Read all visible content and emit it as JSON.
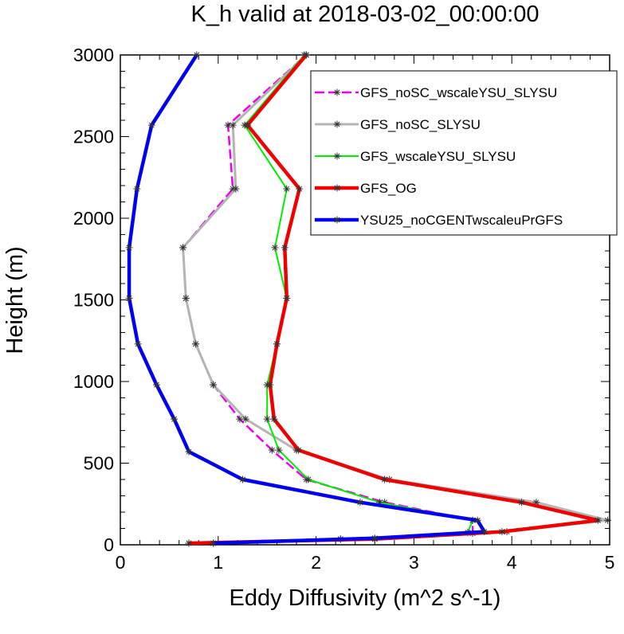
{
  "chart_data": {
    "type": "line",
    "title": "K_h valid at 2018-03-02_00:00:00",
    "xlabel": "Eddy Diffusivity (m^2 s^-1)",
    "ylabel": "Height (m)",
    "xlim": [
      0,
      5
    ],
    "ylim": [
      0,
      3000
    ],
    "x_ticks": [
      0,
      1,
      2,
      3,
      4,
      5
    ],
    "y_ticks": [
      0,
      500,
      1000,
      1500,
      2000,
      2500,
      3000
    ],
    "grid": false,
    "legend_position": "top-right",
    "series": [
      {
        "name": "GFS_noSC_wscaleYSU_SLYSU",
        "color": "#ee00ee",
        "dashed": true,
        "width": 2.5,
        "points": [
          [
            0.95,
            10
          ],
          [
            2.25,
            35
          ],
          [
            3.6,
            70
          ],
          [
            3.6,
            150
          ],
          [
            2.7,
            260
          ],
          [
            1.9,
            400
          ],
          [
            1.55,
            580
          ],
          [
            1.22,
            770
          ],
          [
            0.95,
            980
          ],
          [
            0.77,
            1230
          ],
          [
            0.67,
            1510
          ],
          [
            0.64,
            1820
          ],
          [
            1.15,
            2180
          ],
          [
            1.1,
            2570
          ],
          [
            1.9,
            3000
          ]
        ]
      },
      {
        "name": "GFS_noSC_SLYSU",
        "color": "#b4b4b4",
        "dashed": false,
        "width": 3,
        "points": [
          [
            0.7,
            10
          ],
          [
            2.6,
            35
          ],
          [
            3.95,
            80
          ],
          [
            4.98,
            150
          ],
          [
            4.25,
            260
          ],
          [
            2.75,
            400
          ],
          [
            1.8,
            580
          ],
          [
            1.28,
            770
          ],
          [
            0.95,
            980
          ],
          [
            0.77,
            1230
          ],
          [
            0.67,
            1510
          ],
          [
            0.64,
            1820
          ],
          [
            1.18,
            2180
          ],
          [
            1.15,
            2570
          ],
          [
            1.9,
            3000
          ]
        ]
      },
      {
        "name": "GFS_wscaleYSU_SLYSU",
        "color": "#00ee00",
        "dashed": false,
        "width": 2,
        "points": [
          [
            0.95,
            10
          ],
          [
            2.25,
            35
          ],
          [
            3.55,
            75
          ],
          [
            3.6,
            150
          ],
          [
            2.65,
            260
          ],
          [
            1.92,
            400
          ],
          [
            1.62,
            580
          ],
          [
            1.5,
            770
          ],
          [
            1.5,
            980
          ],
          [
            1.6,
            1230
          ],
          [
            1.7,
            1510
          ],
          [
            1.58,
            1820
          ],
          [
            1.7,
            2180
          ],
          [
            1.27,
            2570
          ],
          [
            1.88,
            3000
          ]
        ]
      },
      {
        "name": "GFS_OG",
        "color": "#ee0000",
        "dashed": false,
        "width": 4.5,
        "points": [
          [
            0.7,
            10
          ],
          [
            2.6,
            35
          ],
          [
            3.9,
            80
          ],
          [
            4.88,
            150
          ],
          [
            4.1,
            260
          ],
          [
            2.7,
            400
          ],
          [
            1.82,
            580
          ],
          [
            1.57,
            770
          ],
          [
            1.53,
            980
          ],
          [
            1.6,
            1230
          ],
          [
            1.7,
            1510
          ],
          [
            1.68,
            1820
          ],
          [
            1.83,
            2180
          ],
          [
            1.3,
            2570
          ],
          [
            1.9,
            3000
          ]
        ]
      },
      {
        "name": "YSU25_noCGENTwscaleuPrGFS",
        "color": "#0000ee",
        "dashed": false,
        "width": 4.5,
        "points": [
          [
            0.95,
            10
          ],
          [
            2.6,
            40
          ],
          [
            3.72,
            80
          ],
          [
            3.65,
            150
          ],
          [
            2.45,
            260
          ],
          [
            1.25,
            400
          ],
          [
            0.7,
            570
          ],
          [
            0.55,
            770
          ],
          [
            0.37,
            980
          ],
          [
            0.18,
            1230
          ],
          [
            0.09,
            1510
          ],
          [
            0.09,
            1820
          ],
          [
            0.17,
            2180
          ],
          [
            0.32,
            2570
          ],
          [
            0.78,
            3000
          ]
        ]
      }
    ]
  }
}
